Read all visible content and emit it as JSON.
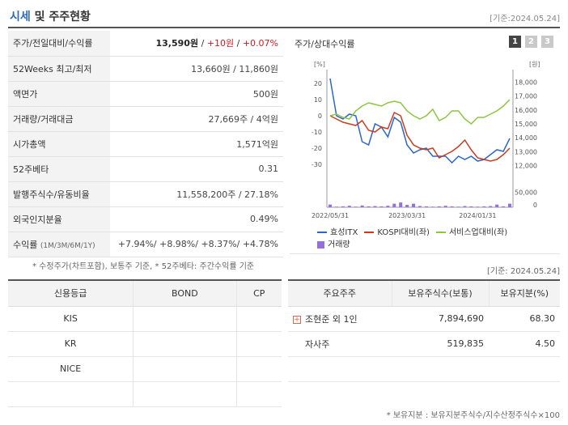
{
  "header": {
    "title_part1": "시세",
    "title_part2": " 및 주주현황",
    "date_label": "[기준:2024.05.24]"
  },
  "market_table": [
    {
      "key": "주가/전일대비/수익률",
      "value_main": "13,590원",
      "value_sep1": " / ",
      "value_change": "+10원",
      "value_sep2": " / ",
      "value_pct": "+0.07%"
    },
    {
      "key": "52Weeks 최고/최저",
      "value": "13,660원 / 11,860원"
    },
    {
      "key": "액면가",
      "value": "500원"
    },
    {
      "key": "거래량/거래대금",
      "value": "27,669주 / 4억원"
    },
    {
      "key": "시가총액",
      "value": "1,571억원"
    },
    {
      "key": "52주베타",
      "value": "0.31"
    },
    {
      "key": "발행주식수/유동비율",
      "value": "11,558,200주 / 27.18%"
    },
    {
      "key": "외국인지분율",
      "value": "0.49%"
    },
    {
      "key": "수익률",
      "key_sub": "(1M/3M/6M/1Y)",
      "value": "+7.94%/ +8.98%/ +8.37%/ +4.78%"
    }
  ],
  "left_note": "* 수정주가(차트포함), 보통주 기준, * 52주베타: 주간수익률 기준",
  "right_note": "[기준: 2024.05.24]",
  "chart_panel": {
    "title": "주가/상대수익률",
    "tabs": [
      "1",
      "2",
      "3"
    ],
    "active_tab": "1"
  },
  "chart_data": {
    "type": "line",
    "left_axis_unit": "[%]",
    "right_axis_unit": "[원]",
    "left_ticks": [
      "20",
      "10",
      "0",
      "-10",
      "-20",
      "-30"
    ],
    "left_ylim": [
      -35,
      25
    ],
    "right_ticks": [
      "18,000",
      "17,000",
      "16,000",
      "15,000",
      "14,000",
      "13,000",
      "12,000"
    ],
    "right_ylim": [
      11500,
      18500
    ],
    "volume_ticks": [
      "50,000",
      "0"
    ],
    "x_tick_labels": [
      "2022/05/31",
      "2023/03/31",
      "2024/01/31"
    ],
    "series": [
      {
        "name": "효성ITX",
        "color": "#2a67c9",
        "values": [
          23,
          0,
          -2,
          1,
          0,
          -16,
          -18,
          -5,
          -7,
          -13,
          -1,
          -4,
          -18,
          -23,
          -21,
          -20,
          -25,
          -25,
          -25,
          -29,
          -25,
          -27,
          -25,
          -28,
          -27,
          -24,
          -21,
          -22,
          -14
        ]
      },
      {
        "name": "KOSPI대비(좌)",
        "color": "#cc3a1f",
        "values": [
          0,
          -2,
          -4,
          -5,
          -6,
          -3,
          -9,
          -10,
          -7,
          -8,
          2,
          0,
          -12,
          -18,
          -20,
          -21,
          -20,
          -26,
          -24,
          -22,
          -19,
          -15,
          -21,
          -26,
          -27,
          -28,
          -27,
          -24,
          -20
        ]
      },
      {
        "name": "서비스업대비(좌)",
        "color": "#8cc63f",
        "values": [
          0,
          1,
          -1,
          -2,
          3,
          6,
          8,
          7,
          6,
          8,
          9,
          8,
          3,
          0,
          -2,
          0,
          4,
          -3,
          -1,
          3,
          3,
          -2,
          -5,
          -1,
          -1,
          1,
          3,
          6,
          10
        ]
      },
      {
        "name": "거래량",
        "color": "#9370db",
        "values": [
          9000,
          2000,
          3000,
          5000,
          2000,
          6000,
          3000,
          4000,
          3000,
          5000,
          12000,
          16000,
          8000,
          12000,
          4000,
          3000,
          2000,
          3000,
          5000,
          3000,
          2000,
          4000,
          3000,
          2000,
          3000,
          4000,
          9000,
          3000,
          12000
        ]
      }
    ]
  },
  "credit_table": {
    "headers": [
      "신용등급",
      "BOND",
      "CP"
    ],
    "rows": [
      [
        "KIS",
        "",
        ""
      ],
      [
        "KR",
        "",
        ""
      ],
      [
        "NICE",
        "",
        ""
      ],
      [
        "",
        "",
        ""
      ]
    ]
  },
  "holder_table": {
    "headers": [
      "주요주주",
      "보유주식수(보통)",
      "보유지분(%)"
    ],
    "rows": [
      {
        "name": "조현준 외 1인",
        "shares": "7,894,690",
        "pct": "68.30",
        "expand": true
      },
      {
        "name": "자사주",
        "shares": "519,835",
        "pct": "4.50",
        "expand": false
      },
      {
        "name": "",
        "shares": "",
        "pct": "",
        "expand": false
      }
    ]
  },
  "bottom_note": "* 보유지분 : 보유지분주식수/지수산정주식수×100"
}
